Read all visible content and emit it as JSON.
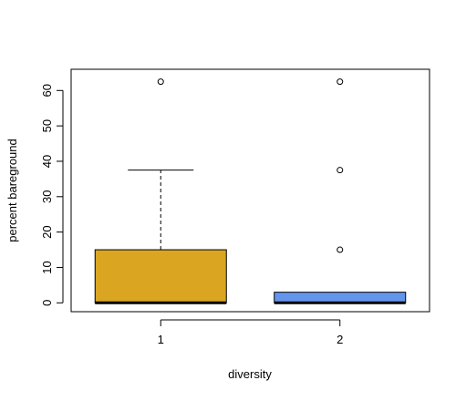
{
  "chart_data": {
    "type": "boxplot",
    "xlabel": "diversity",
    "ylabel": "percent bareground",
    "categories": [
      "1",
      "2"
    ],
    "ylim": [
      -2.5,
      66
    ],
    "y_ticks": [
      0,
      10,
      20,
      30,
      40,
      50,
      60
    ],
    "grid": false,
    "legend": "none",
    "boxes": [
      {
        "category": "1",
        "min": 0,
        "q1": 0,
        "median": 0,
        "q3": 15,
        "max": 37.5,
        "outliers": [
          62.5
        ],
        "color": "#DAA520"
      },
      {
        "category": "2",
        "min": 0,
        "q1": 0,
        "median": 0,
        "q3": 3,
        "max": 3,
        "outliers": [
          15,
          37.5,
          62.5
        ],
        "color": "#6495ED"
      }
    ]
  }
}
